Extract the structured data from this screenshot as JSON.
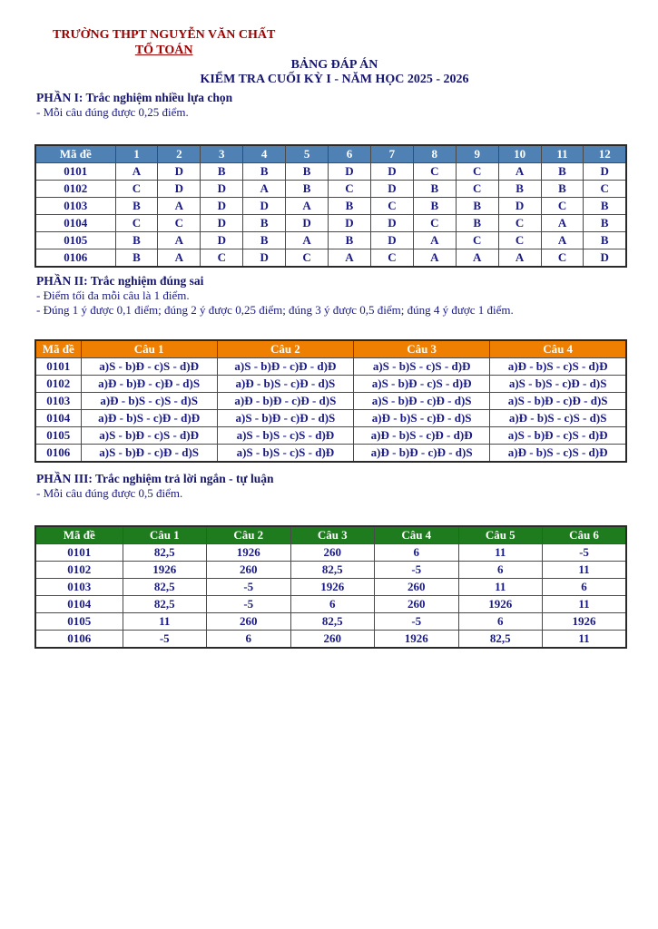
{
  "header": {
    "school": "TRƯỜNG THPT NGUYỄN VĂN CHẤT",
    "department": "TỔ TOÁN",
    "title": "BẢNG ĐÁP ÁN",
    "subtitle": "KIỂM TRA CUỐI KỲ I - NĂM HỌC 2025 - 2026"
  },
  "colors": {
    "heading_red": "#a00000",
    "text_navy": "#1a1a85",
    "title_navy": "#16166e",
    "part1_header_bg": "#4f81b5",
    "part2_header_bg": "#ef7f00",
    "part3_header_bg": "#1e7b1e"
  },
  "part1": {
    "heading": "PHẦN I: Trắc nghiệm nhiều lựa chọn",
    "note": "- Mỗi câu đúng được 0,25 điểm.",
    "table": {
      "header_color": "#4f81b5",
      "header": [
        "Mã đề",
        "1",
        "2",
        "3",
        "4",
        "5",
        "6",
        "7",
        "8",
        "9",
        "10",
        "11",
        "12"
      ],
      "rows": [
        [
          "0101",
          "A",
          "D",
          "B",
          "B",
          "B",
          "D",
          "D",
          "C",
          "C",
          "A",
          "B",
          "D"
        ],
        [
          "0102",
          "C",
          "D",
          "D",
          "A",
          "B",
          "C",
          "D",
          "B",
          "C",
          "B",
          "B",
          "C"
        ],
        [
          "0103",
          "B",
          "A",
          "D",
          "D",
          "A",
          "B",
          "C",
          "B",
          "B",
          "D",
          "C",
          "B"
        ],
        [
          "0104",
          "C",
          "C",
          "D",
          "B",
          "D",
          "D",
          "D",
          "C",
          "B",
          "C",
          "A",
          "B"
        ],
        [
          "0105",
          "B",
          "A",
          "D",
          "B",
          "A",
          "B",
          "D",
          "A",
          "C",
          "C",
          "A",
          "B"
        ],
        [
          "0106",
          "B",
          "A",
          "C",
          "D",
          "C",
          "A",
          "C",
          "A",
          "A",
          "A",
          "C",
          "D"
        ]
      ]
    }
  },
  "part2": {
    "heading": "PHẦN II: Trắc nghiệm đúng sai",
    "note1": "- Điểm tối đa mỗi câu là 1 điểm.",
    "note2": "- Đúng 1 ý được 0,1 điểm; đúng 2 ý được 0,25 điểm; đúng 3 ý được 0,5 điểm; đúng 4 ý được 1 điểm.",
    "table": {
      "header_color": "#ef7f00",
      "header": [
        "Mã đề",
        "Câu 1",
        "Câu 2",
        "Câu 3",
        "Câu 4"
      ],
      "rows": [
        [
          "0101",
          "a)S - b)Đ - c)S - d)Đ",
          "a)S - b)Đ - c)Đ - d)Đ",
          "a)S - b)S - c)S - d)Đ",
          "a)Đ - b)S - c)S - d)Đ"
        ],
        [
          "0102",
          "a)Đ - b)Đ - c)Đ - d)S",
          "a)Đ - b)S - c)Đ - d)S",
          "a)S - b)Đ - c)S - d)Đ",
          "a)S - b)S - c)Đ - d)S"
        ],
        [
          "0103",
          "a)Đ - b)S - c)S - d)S",
          "a)Đ - b)Đ - c)Đ - d)S",
          "a)S - b)Đ - c)Đ - d)S",
          "a)S - b)Đ - c)Đ - d)S"
        ],
        [
          "0104",
          "a)Đ - b)S - c)Đ - d)Đ",
          "a)S - b)Đ - c)Đ - d)S",
          "a)Đ - b)S - c)Đ - d)S",
          "a)Đ - b)S - c)S - d)S"
        ],
        [
          "0105",
          "a)S - b)Đ - c)S - d)Đ",
          "a)S - b)S - c)S - d)Đ",
          "a)Đ - b)S - c)Đ - d)Đ",
          "a)S - b)Đ - c)S - d)Đ"
        ],
        [
          "0106",
          "a)S - b)Đ - c)Đ - d)S",
          "a)S - b)S - c)S - d)Đ",
          "a)Đ - b)Đ - c)Đ - d)S",
          "a)Đ - b)S - c)S - d)Đ"
        ]
      ]
    }
  },
  "part3": {
    "heading": "PHẦN III: Trắc nghiệm trả lời ngắn - tự luận",
    "note": "- Mỗi câu đúng được 0,5 điểm.",
    "table": {
      "header_color": "#1e7b1e",
      "header": [
        "Mã đề",
        "Câu 1",
        "Câu 2",
        "Câu 3",
        "Câu 4",
        "Câu 5",
        "Câu 6"
      ],
      "rows": [
        [
          "0101",
          "82,5",
          "1926",
          "260",
          "6",
          "11",
          "-5"
        ],
        [
          "0102",
          "1926",
          "260",
          "82,5",
          "-5",
          "6",
          "11"
        ],
        [
          "0103",
          "82,5",
          "-5",
          "1926",
          "260",
          "11",
          "6"
        ],
        [
          "0104",
          "82,5",
          "-5",
          "6",
          "260",
          "1926",
          "11"
        ],
        [
          "0105",
          "11",
          "260",
          "82,5",
          "-5",
          "6",
          "1926"
        ],
        [
          "0106",
          "-5",
          "6",
          "260",
          "1926",
          "82,5",
          "11"
        ]
      ]
    }
  }
}
